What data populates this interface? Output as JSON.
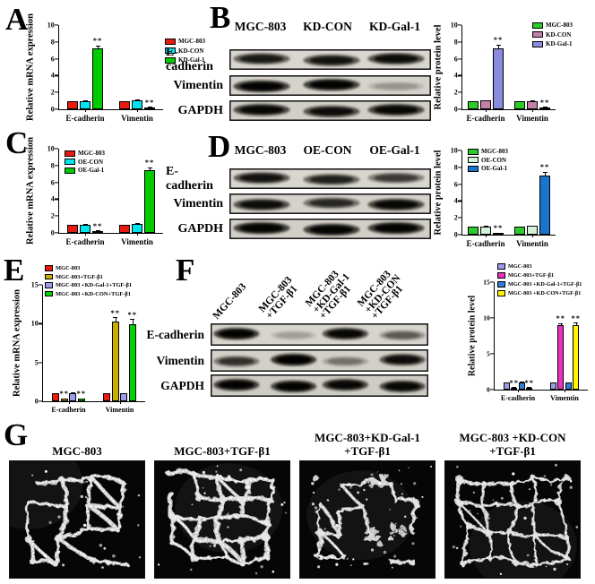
{
  "figure": {
    "background": "#ffffff",
    "panels": {
      "A": {
        "letter": "A"
      },
      "B": {
        "letter": "B",
        "blot": {
          "columns": [
            "MGC-803",
            "KD-CON",
            "KD-Gal-1"
          ],
          "rows": [
            {
              "label": "E-cadherin",
              "band_intensities": [
                0.75,
                0.8,
                0.85
              ]
            },
            {
              "label": "Vimentin",
              "band_intensities": [
                0.95,
                0.95,
                0.18
              ]
            },
            {
              "label": "GAPDH",
              "band_intensities": [
                0.9,
                0.85,
                0.9
              ]
            }
          ]
        }
      },
      "C": {
        "letter": "C"
      },
      "D": {
        "letter": "D",
        "blot": {
          "columns": [
            "MGC-803",
            "OE-CON",
            "OE-Gal-1"
          ],
          "rows": [
            {
              "label": "E-cadherin",
              "band_intensities": [
                0.8,
                0.7,
                0.55
              ]
            },
            {
              "label": "Vimentin",
              "band_intensities": [
                0.85,
                0.65,
                0.9
              ]
            },
            {
              "label": "GAPDH",
              "band_intensities": [
                0.95,
                0.95,
                0.95
              ]
            }
          ]
        }
      },
      "E": {
        "letter": "E"
      },
      "F": {
        "letter": "F",
        "blot": {
          "columns_rotated": true,
          "columns": [
            [
              "MGC-803"
            ],
            [
              "MGC-803",
              "+TGF-β1"
            ],
            [
              "MGC-803",
              "+KD-Gal-1",
              "+TGF-β1"
            ],
            [
              "MGC-803",
              "+KD-CON",
              "+TGF-β1"
            ]
          ],
          "rows": [
            {
              "label": "E-cadherin",
              "band_intensities": [
                0.95,
                0.15,
                0.9,
                0.4
              ]
            },
            {
              "label": "Vimentin",
              "band_intensities": [
                0.6,
                1.0,
                0.3,
                0.85
              ]
            },
            {
              "label": "GAPDH",
              "band_intensities": [
                0.95,
                0.95,
                0.9,
                0.9
              ]
            }
          ]
        }
      },
      "G": {
        "letter": "G",
        "micrographs": [
          {
            "label_lines": [
              "MGC-803"
            ]
          },
          {
            "label_lines": [
              "MGC-803+TGF-β1"
            ]
          },
          {
            "label_lines": [
              "MGC-803+KD-Gal-1",
              "+TGF-β1"
            ]
          },
          {
            "label_lines": [
              "MGC-803 +KD-CON",
              "+TGF-β1"
            ]
          }
        ]
      }
    }
  },
  "chart_data": [
    {
      "id": "A",
      "panel": "A",
      "type": "bar",
      "ylabel": "Relative mRNA expression",
      "ylim": [
        0,
        10
      ],
      "yticks": [
        0,
        2,
        4,
        6,
        8,
        10
      ],
      "categories": [
        "E-cadherin",
        "Vimentin"
      ],
      "legend_position": "right",
      "series": [
        {
          "name": "MGC-803",
          "color": "#E8190F",
          "values": [
            1.0,
            1.0
          ],
          "err": [
            0,
            0
          ],
          "sig": [
            "",
            ""
          ]
        },
        {
          "name": "KD-CON",
          "color": "#00E5EE",
          "values": [
            1.0,
            1.1
          ],
          "err": [
            0.08,
            0.1
          ],
          "sig": [
            "",
            ""
          ]
        },
        {
          "name": "KD-Gal-1",
          "color": "#00CB00",
          "values": [
            7.2,
            0.15
          ],
          "err": [
            0.4,
            0.06
          ],
          "sig": [
            "**",
            "**"
          ]
        }
      ]
    },
    {
      "id": "B",
      "panel": "B",
      "type": "bar",
      "ylabel": "Relative protein level",
      "ylim": [
        0,
        10
      ],
      "yticks": [
        0,
        2,
        4,
        6,
        8,
        10
      ],
      "categories": [
        "E-cadherin",
        "Vimentin"
      ],
      "legend_position": "inside-top-right",
      "series": [
        {
          "name": "MGC-803",
          "color": "#2BCB2B",
          "values": [
            1.0,
            1.0
          ],
          "err": [
            0,
            0
          ],
          "sig": [
            "",
            ""
          ]
        },
        {
          "name": "KD-CON",
          "color": "#C480A8",
          "values": [
            1.05,
            1.0
          ],
          "err": [
            0.06,
            0.05
          ],
          "sig": [
            "",
            ""
          ]
        },
        {
          "name": "KD-Gal-1",
          "color": "#8A8ADF",
          "values": [
            7.2,
            0.2
          ],
          "err": [
            0.5,
            0.06
          ],
          "sig": [
            "**",
            "**"
          ]
        }
      ]
    },
    {
      "id": "C",
      "panel": "C",
      "type": "bar",
      "ylabel": "Relative mRNA expression",
      "ylim": [
        0,
        10
      ],
      "yticks": [
        0,
        2,
        4,
        6,
        8,
        10
      ],
      "categories": [
        "E-cadherin",
        "Vimentin"
      ],
      "legend_position": "inside-top-left",
      "series": [
        {
          "name": "MGC-803",
          "color": "#E8190F",
          "values": [
            1.0,
            1.0
          ],
          "err": [
            0,
            0
          ],
          "sig": [
            "",
            ""
          ]
        },
        {
          "name": "OE-CON",
          "color": "#00E5EE",
          "values": [
            1.0,
            1.05
          ],
          "err": [
            0.06,
            0.08
          ],
          "sig": [
            "",
            ""
          ]
        },
        {
          "name": "OE-Gal-1",
          "color": "#00CB00",
          "values": [
            0.2,
            7.4
          ],
          "err": [
            0.06,
            0.4
          ],
          "sig": [
            "**",
            "**"
          ]
        }
      ]
    },
    {
      "id": "D",
      "panel": "D",
      "type": "bar",
      "ylabel": "Relative protein level",
      "ylim": [
        0,
        10
      ],
      "yticks": [
        0,
        2,
        4,
        6,
        8,
        10
      ],
      "categories": [
        "E-cadherin",
        "Vimentin"
      ],
      "legend_position": "inside-top-left",
      "series": [
        {
          "name": "MGC-803",
          "color": "#2BCB2B",
          "values": [
            1.0,
            1.0
          ],
          "err": [
            0,
            0
          ],
          "sig": [
            "",
            ""
          ]
        },
        {
          "name": "OE-CON",
          "color": "#D2F2DA",
          "values": [
            1.0,
            1.05
          ],
          "err": [
            0.05,
            0.06
          ],
          "sig": [
            "",
            ""
          ]
        },
        {
          "name": "OE-Gal-1",
          "color": "#1874CD",
          "values": [
            0.15,
            7.0
          ],
          "err": [
            0.05,
            0.45
          ],
          "sig": [
            "**",
            "**"
          ]
        }
      ]
    },
    {
      "id": "E",
      "panel": "E",
      "type": "bar",
      "ylabel": "Relative mRNA expression",
      "ylim": [
        0,
        15
      ],
      "yticks": [
        0,
        5,
        10,
        15
      ],
      "categories": [
        "E-cadherin",
        "Vimentin"
      ],
      "legend_position": "inside-top-left",
      "series": [
        {
          "name": "MGC-803",
          "color": "#E8190F",
          "values": [
            1.0,
            1.0
          ],
          "err": [
            0,
            0
          ],
          "sig": [
            "",
            ""
          ]
        },
        {
          "name": "MGC-803+TGF-β1",
          "color": "#C9AD00",
          "values": [
            0.3,
            10.3
          ],
          "err": [
            0.06,
            0.5
          ],
          "sig": [
            "**",
            "**"
          ]
        },
        {
          "name": "MGC-803 +KD-Gal-1+TGF-β1",
          "color": "#9C9CE8",
          "values": [
            1.05,
            1.0
          ],
          "err": [
            0.08,
            0.06
          ],
          "sig": [
            "",
            ""
          ]
        },
        {
          "name": "MGC-803 +KD-CON+TGF-β1",
          "color": "#00D400",
          "values": [
            0.3,
            9.9
          ],
          "err": [
            0.06,
            0.7
          ],
          "sig": [
            "**",
            "**"
          ]
        }
      ]
    },
    {
      "id": "F",
      "panel": "F",
      "type": "bar",
      "ylabel": "Relative protein level",
      "ylim": [
        0,
        15
      ],
      "yticks": [
        0,
        5,
        10,
        15
      ],
      "categories": [
        "E-cadherin",
        "Vimentin"
      ],
      "legend_position": "inside-top-left",
      "series": [
        {
          "name": "MGC-803",
          "color": "#9C9CE8",
          "values": [
            1.0,
            1.0
          ],
          "err": [
            0,
            0
          ],
          "sig": [
            "",
            ""
          ]
        },
        {
          "name": "MGC-803+TGF-β1",
          "color": "#EE2FC4",
          "values": [
            0.3,
            9.0
          ],
          "err": [
            0.06,
            0.3
          ],
          "sig": [
            "**",
            "**"
          ]
        },
        {
          "name": "MGC-803 +KD-Gal-1+TGF-β1",
          "color": "#2D7CD8",
          "values": [
            1.05,
            1.0
          ],
          "err": [
            0.06,
            0.05
          ],
          "sig": [
            "",
            ""
          ]
        },
        {
          "name": "MGC-803 +KD-CON+TGF-β1",
          "color": "#FFF500",
          "values": [
            0.3,
            9.0
          ],
          "err": [
            0.06,
            0.35
          ],
          "sig": [
            "**",
            "**"
          ]
        }
      ]
    }
  ]
}
